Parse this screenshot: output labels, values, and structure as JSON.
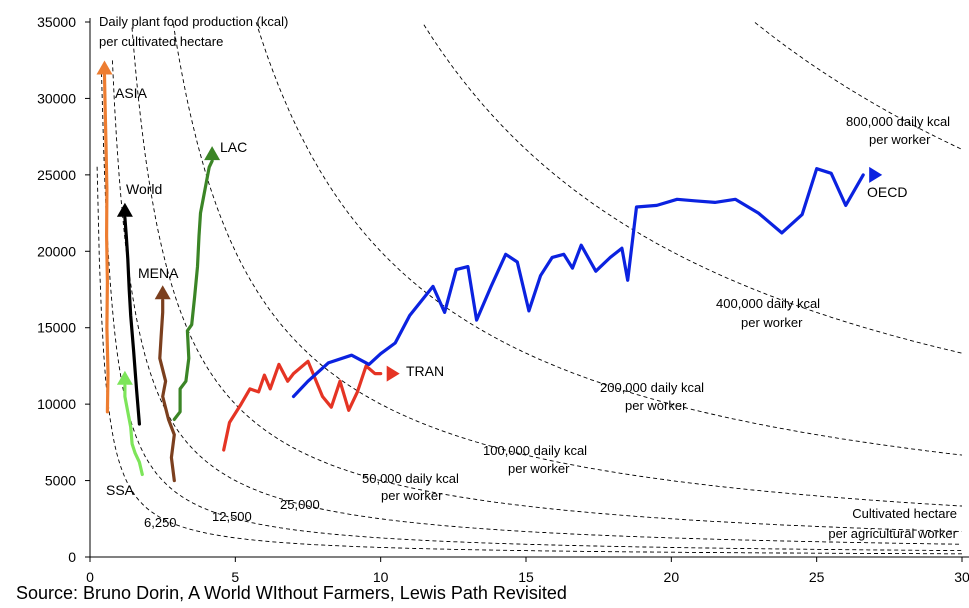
{
  "chart_data": {
    "type": "line",
    "title": "Daily plant food production (kcal) per cultivated hectare",
    "title_lines": [
      "Daily plant food production (kcal)",
      "per cultivated hectare"
    ],
    "xlabel_lines": [
      "Cultivated hectare",
      "per agricultural worker"
    ],
    "ylabel": "Daily plant food production (kcal) per cultivated hectare",
    "xlim": [
      0,
      30
    ],
    "ylim": [
      0,
      35000
    ],
    "x_ticks": [
      0,
      5,
      10,
      15,
      20,
      25,
      30
    ],
    "y_ticks": [
      0,
      5000,
      10000,
      15000,
      20000,
      25000,
      30000,
      35000
    ],
    "iso_curves": [
      {
        "kcal_per_worker": 6250,
        "label": "6,250"
      },
      {
        "kcal_per_worker": 12500,
        "label": "12,500"
      },
      {
        "kcal_per_worker": 25000,
        "label": "25,000"
      },
      {
        "kcal_per_worker": 50000,
        "label_lines": [
          "50,000 daily kcal",
          "per worker"
        ]
      },
      {
        "kcal_per_worker": 100000,
        "label_lines": [
          "100,000 daily kcal",
          "per worker"
        ]
      },
      {
        "kcal_per_worker": 200000,
        "label_lines": [
          "200,000 daily kcal",
          "per worker"
        ]
      },
      {
        "kcal_per_worker": 400000,
        "label_lines": [
          "400,000 daily kcal",
          "per worker"
        ]
      },
      {
        "kcal_per_worker": 800000,
        "label_lines": [
          "800,000 daily kcal",
          "per worker"
        ]
      }
    ],
    "series": [
      {
        "name": "ASIA",
        "color": "#ED7D31",
        "arrow": "up",
        "points": [
          [
            0.6,
            9500
          ],
          [
            0.62,
            12000
          ],
          [
            0.58,
            15000
          ],
          [
            0.6,
            18000
          ],
          [
            0.57,
            21000
          ],
          [
            0.58,
            24000
          ],
          [
            0.55,
            27000
          ],
          [
            0.52,
            29500
          ],
          [
            0.5,
            31500
          ]
        ]
      },
      {
        "name": "World",
        "color": "#000000",
        "arrow": "up",
        "points": [
          [
            1.7,
            8700
          ],
          [
            1.6,
            11000
          ],
          [
            1.5,
            13500
          ],
          [
            1.4,
            15800
          ],
          [
            1.35,
            17500
          ],
          [
            1.3,
            19500
          ],
          [
            1.25,
            21000
          ],
          [
            1.2,
            22200
          ]
        ]
      },
      {
        "name": "LAC",
        "color": "#3B8526",
        "arrow": "up",
        "points": [
          [
            2.9,
            9000
          ],
          [
            3.1,
            9500
          ],
          [
            3.1,
            11000
          ],
          [
            3.3,
            11500
          ],
          [
            3.4,
            13000
          ],
          [
            3.35,
            14800
          ],
          [
            3.5,
            15200
          ],
          [
            3.6,
            17000
          ],
          [
            3.7,
            19000
          ],
          [
            3.75,
            21000
          ],
          [
            3.8,
            22500
          ],
          [
            3.9,
            23500
          ],
          [
            4.0,
            24500
          ],
          [
            4.1,
            25500
          ],
          [
            4.2,
            25900
          ]
        ]
      },
      {
        "name": "MENA",
        "color": "#7B3F1E",
        "arrow": "up",
        "points": [
          [
            2.9,
            5000
          ],
          [
            2.8,
            6500
          ],
          [
            2.9,
            8000
          ],
          [
            2.7,
            9000
          ],
          [
            2.5,
            10500
          ],
          [
            2.6,
            11500
          ],
          [
            2.4,
            13000
          ],
          [
            2.45,
            14500
          ],
          [
            2.5,
            16000
          ],
          [
            2.5,
            16800
          ]
        ]
      },
      {
        "name": "SSA",
        "color": "#7DE55A",
        "arrow": "up",
        "points": [
          [
            1.8,
            5400
          ],
          [
            1.7,
            6200
          ],
          [
            1.55,
            6800
          ],
          [
            1.45,
            7400
          ],
          [
            1.4,
            8500
          ],
          [
            1.3,
            9500
          ],
          [
            1.2,
            10500
          ],
          [
            1.2,
            11200
          ]
        ]
      },
      {
        "name": "TRAN",
        "color": "#E53424",
        "arrow": "right",
        "points": [
          [
            4.6,
            7000
          ],
          [
            4.8,
            8800
          ],
          [
            5.2,
            10000
          ],
          [
            5.5,
            11000
          ],
          [
            5.8,
            10800
          ],
          [
            6.0,
            11900
          ],
          [
            6.2,
            11000
          ],
          [
            6.5,
            12600
          ],
          [
            6.8,
            11500
          ],
          [
            7.0,
            12000
          ],
          [
            7.5,
            12800
          ],
          [
            8.0,
            10500
          ],
          [
            8.3,
            9800
          ],
          [
            8.6,
            11500
          ],
          [
            8.9,
            9600
          ],
          [
            9.2,
            10800
          ],
          [
            9.5,
            12500
          ],
          [
            9.8,
            12000
          ],
          [
            10.0,
            12000
          ]
        ]
      },
      {
        "name": "OECD",
        "color": "#0B22E0",
        "arrow": "right",
        "points": [
          [
            7.0,
            10500
          ],
          [
            7.5,
            11500
          ],
          [
            8.2,
            12700
          ],
          [
            9.0,
            13200
          ],
          [
            9.6,
            12600
          ],
          [
            10.0,
            13300
          ],
          [
            10.5,
            14000
          ],
          [
            11.0,
            15800
          ],
          [
            11.8,
            17700
          ],
          [
            12.2,
            16000
          ],
          [
            12.6,
            18800
          ],
          [
            13.0,
            19000
          ],
          [
            13.3,
            15500
          ],
          [
            13.8,
            17700
          ],
          [
            14.3,
            19800
          ],
          [
            14.7,
            19300
          ],
          [
            15.1,
            16100
          ],
          [
            15.5,
            18400
          ],
          [
            15.9,
            19600
          ],
          [
            16.3,
            19800
          ],
          [
            16.6,
            18900
          ],
          [
            16.9,
            20400
          ],
          [
            17.4,
            18700
          ],
          [
            17.9,
            19600
          ],
          [
            18.3,
            20200
          ],
          [
            18.5,
            18100
          ],
          [
            18.8,
            22900
          ],
          [
            19.5,
            23000
          ],
          [
            20.2,
            23400
          ],
          [
            20.8,
            23300
          ],
          [
            21.5,
            23200
          ],
          [
            22.2,
            23400
          ],
          [
            23.0,
            22500
          ],
          [
            23.8,
            21200
          ],
          [
            24.5,
            22400
          ],
          [
            25.0,
            25400
          ],
          [
            25.5,
            25100
          ],
          [
            26.0,
            23000
          ],
          [
            26.6,
            25000
          ]
        ]
      }
    ]
  },
  "source_text": "Source: Bruno Dorin, A World WIthout Farmers, Lewis Path Revisited"
}
